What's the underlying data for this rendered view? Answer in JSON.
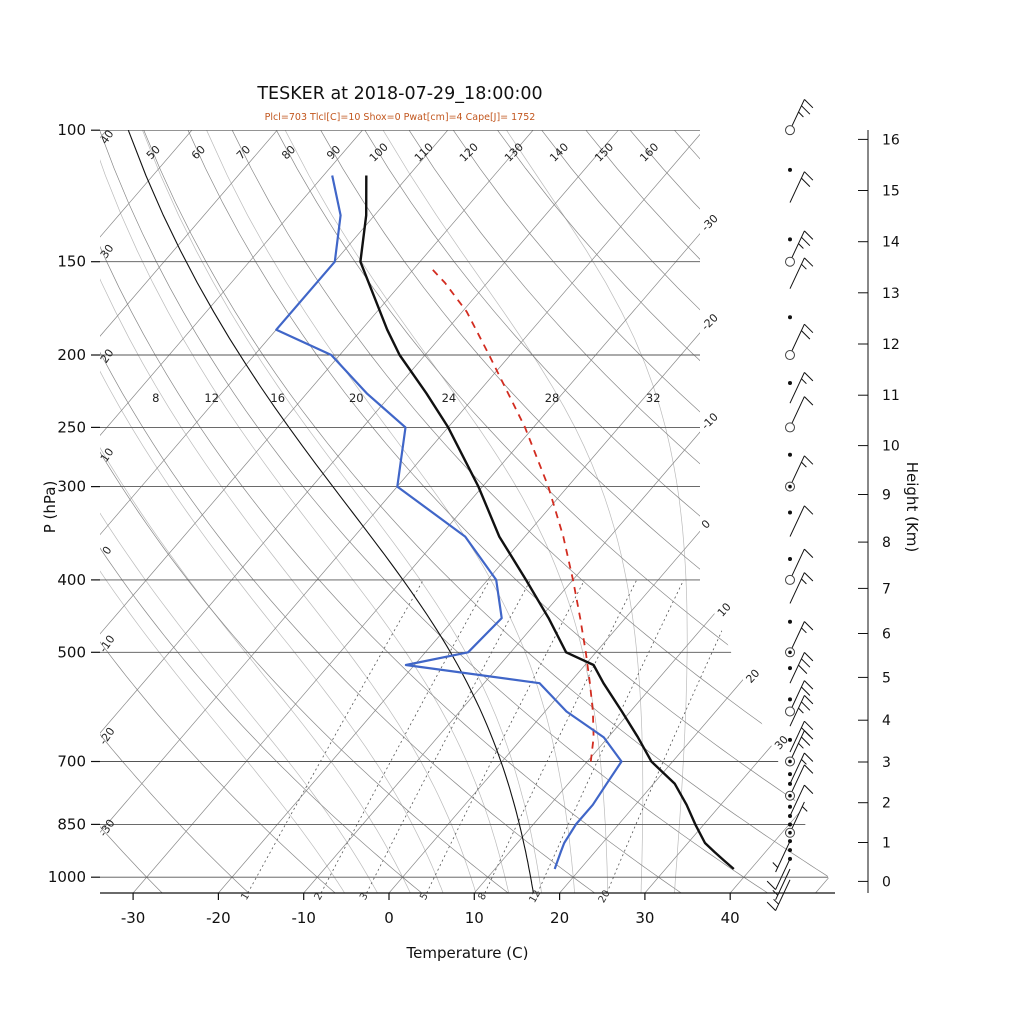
{
  "title": "TESKER at 2018-07-29_18:00:00",
  "subtitle": "Plcl=703 Tlcl[C]=10 Shox=0 Pwat[cm]=4 Cape[J]= 1752",
  "axes": {
    "pressure_label": "P (hPa)",
    "temperature_label": "Temperature (C)",
    "height_label": "Height (Km)",
    "pressure_ticks": [
      100,
      150,
      200,
      250,
      300,
      400,
      500,
      700,
      850,
      1000
    ],
    "temperature_ticks": [
      -30,
      -20,
      -10,
      0,
      10,
      20,
      30,
      40
    ],
    "height_ticks": [
      0,
      1,
      2,
      3,
      4,
      5,
      6,
      7,
      8,
      9,
      10,
      11,
      12,
      13,
      14,
      15,
      16
    ]
  },
  "grid_labels": {
    "dry_adiabat_top": [
      "50",
      "60",
      "70",
      "80",
      "90",
      "100",
      "110",
      "120",
      "130",
      "140",
      "150",
      "160"
    ],
    "dry_adiabat_left": [
      "40",
      "30",
      "20",
      "10",
      "0",
      "-10",
      "-20",
      "-30"
    ],
    "isotherm_right_upper": [
      "-30",
      "-20",
      "-10",
      "0"
    ],
    "isotherm_right_lower": [
      "10",
      "20",
      "30"
    ],
    "moist_adiabat_row": [
      "8",
      "12",
      "16",
      "20",
      "24",
      "28",
      "32"
    ],
    "mixing_ratio_bottom": [
      "1",
      "2",
      "3",
      "5",
      "8",
      "12",
      "20"
    ]
  },
  "chart_data": {
    "type": "skewt-logp",
    "station": "TESKER",
    "datetime": "2018-07-29_18:00:00",
    "indices": {
      "Plcl": 703,
      "Tlcl_C": 10,
      "Shox": 0,
      "Pwat_cm": 4,
      "Cape_J": 1752
    },
    "pressure_axis_range_hPa": [
      100,
      1050
    ],
    "temperature_axis_ticks_C": [
      -30,
      40
    ],
    "sounding": {
      "pressure_hPa": [
        975,
        950,
        925,
        900,
        850,
        800,
        750,
        700,
        650,
        600,
        550,
        520,
        500,
        450,
        400,
        350,
        300,
        250,
        225,
        200,
        185,
        150,
        130,
        115
      ],
      "temperature_C": [
        38,
        36,
        34,
        32,
        29,
        26,
        22.5,
        17.5,
        13.5,
        9,
        4,
        1,
        -3.5,
        -9,
        -15.5,
        -23,
        -30.5,
        -40,
        -46,
        -53,
        -57,
        -67,
        -71,
        -75
      ],
      "dewpoint_C": [
        17,
        16.5,
        16,
        15.5,
        15,
        15,
        14.5,
        14,
        9.5,
        2.5,
        -3.5,
        -21,
        -15,
        -14.5,
        -19,
        -27,
        -40,
        -45,
        -53,
        -61,
        -70,
        -70,
        -74,
        -79
      ]
    },
    "parcel_path": {
      "pressure_hPa": [
        700,
        650,
        600,
        550,
        500,
        450,
        400,
        350,
        300,
        250,
        200,
        175,
        160,
        152
      ],
      "temperature_C": [
        10.4,
        8.3,
        5.6,
        2.4,
        -1.2,
        -5.3,
        -10,
        -15.5,
        -22.3,
        -31,
        -42.5,
        -49.5,
        -55,
        -58.5
      ]
    },
    "aux_moist_adiabat_C": 15,
    "winds": [
      {
        "p": 100,
        "kt": 25,
        "marker": "circle"
      },
      {
        "p": 113,
        "kt": 0,
        "marker": "dot"
      },
      {
        "p": 125,
        "kt": 20,
        "marker": "none"
      },
      {
        "p": 140,
        "kt": 0,
        "marker": "dot"
      },
      {
        "p": 150,
        "kt": 25,
        "marker": "circle"
      },
      {
        "p": 163,
        "kt": 15,
        "marker": "none"
      },
      {
        "p": 178,
        "kt": 0,
        "marker": "dot"
      },
      {
        "p": 200,
        "kt": 20,
        "marker": "circle"
      },
      {
        "p": 218,
        "kt": 0,
        "marker": "dot"
      },
      {
        "p": 232,
        "kt": 15,
        "marker": "none"
      },
      {
        "p": 250,
        "kt": 10,
        "marker": "circle"
      },
      {
        "p": 272,
        "kt": 0,
        "marker": "dot"
      },
      {
        "p": 300,
        "kt": 15,
        "marker": "double-circle"
      },
      {
        "p": 325,
        "kt": 0,
        "marker": "dot"
      },
      {
        "p": 350,
        "kt": 10,
        "marker": "none"
      },
      {
        "p": 375,
        "kt": 0,
        "marker": "dot"
      },
      {
        "p": 400,
        "kt": 10,
        "marker": "circle"
      },
      {
        "p": 430,
        "kt": 15,
        "marker": "none"
      },
      {
        "p": 455,
        "kt": 0,
        "marker": "dot"
      },
      {
        "p": 500,
        "kt": 15,
        "marker": "double-circle"
      },
      {
        "p": 525,
        "kt": 0,
        "marker": "dot"
      },
      {
        "p": 550,
        "kt": 30,
        "marker": "none"
      },
      {
        "p": 578,
        "kt": 0,
        "marker": "dot"
      },
      {
        "p": 600,
        "kt": 20,
        "marker": "circle"
      },
      {
        "p": 628,
        "kt": 25,
        "marker": "none"
      },
      {
        "p": 655,
        "kt": 0,
        "marker": "dot"
      },
      {
        "p": 680,
        "kt": 20,
        "marker": "none"
      },
      {
        "p": 700,
        "kt": 25,
        "marker": "double-circle"
      },
      {
        "p": 728,
        "kt": 0,
        "marker": "dot"
      },
      {
        "p": 750,
        "kt": 15,
        "marker": "dot"
      },
      {
        "p": 778,
        "kt": 10,
        "marker": "double-circle"
      },
      {
        "p": 805,
        "kt": 0,
        "marker": "dot"
      },
      {
        "p": 828,
        "kt": 10,
        "marker": "dot"
      },
      {
        "p": 850,
        "kt": 0,
        "marker": "dot"
      },
      {
        "p": 872,
        "kt": 5,
        "marker": "double-circle"
      },
      {
        "p": 895,
        "kt": 5,
        "marker": "dot",
        "dir": 205
      },
      {
        "p": 920,
        "kt": 0,
        "marker": "dot"
      },
      {
        "p": 945,
        "kt": 10,
        "marker": "dot",
        "dir": 205
      },
      {
        "p": 975,
        "kt": 5,
        "marker": "none",
        "dir": 205
      },
      {
        "p": 1008,
        "kt": 15,
        "marker": "none",
        "dir": 205
      }
    ],
    "colors": {
      "temperature": "#111111",
      "dewpoint": "#4066c8",
      "parcel": "#d22c20",
      "subtitle": "#c2571f",
      "grid": "#888888",
      "grid_light": "#bbbbbb",
      "mixing": "#555555",
      "axis": "#111111"
    }
  }
}
